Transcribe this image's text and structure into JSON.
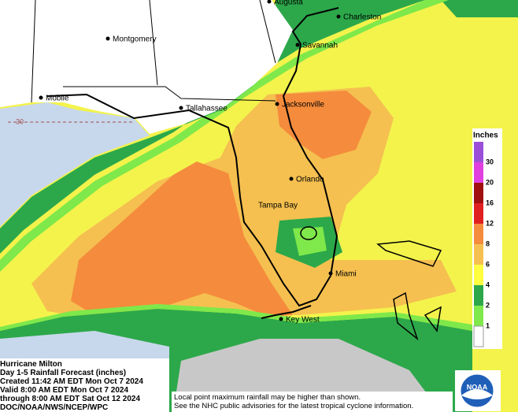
{
  "map": {
    "latitude_label": "30",
    "cities": [
      "Augusta",
      "Charleston",
      "Montgomery",
      "Savannah",
      "Mobile",
      "Tallahassee",
      "Jacksonville",
      "Orlando",
      "Tampa Bay",
      "Miami",
      "Key West"
    ]
  },
  "legend": {
    "title": "Inches",
    "items": [
      {
        "value": 30,
        "color": "#9b4fd9"
      },
      {
        "value": 20,
        "color": "#e040e0"
      },
      {
        "value": 16,
        "color": "#a01010"
      },
      {
        "value": 12,
        "color": "#e02020"
      },
      {
        "value": 8,
        "color": "#f58b3c"
      },
      {
        "value": 6,
        "color": "#f5c050"
      },
      {
        "value": 4,
        "color": "#ffff40"
      },
      {
        "value": 2,
        "color": "#2ca84a"
      },
      {
        "value": 1,
        "color": "#7fe84a"
      }
    ]
  },
  "info": {
    "lines": [
      "Hurricane Milton",
      "Day 1-5 Rainfall Forecast (inches)",
      "Created 11:42 AM EDT Mon Oct 7 2024",
      "Valid 8:00 AM EDT Mon Oct 7 2024",
      "through 8:00 AM EDT Sat Oct 12 2024",
      "DOC/NOAA/NWS/NCEP/WPC"
    ]
  },
  "footnote": {
    "lines": [
      "Local point maximum rainfall may be higher than shown.",
      "See the NHC public advisories for the latest tropical cyclone information."
    ]
  },
  "logo": "NOAA"
}
